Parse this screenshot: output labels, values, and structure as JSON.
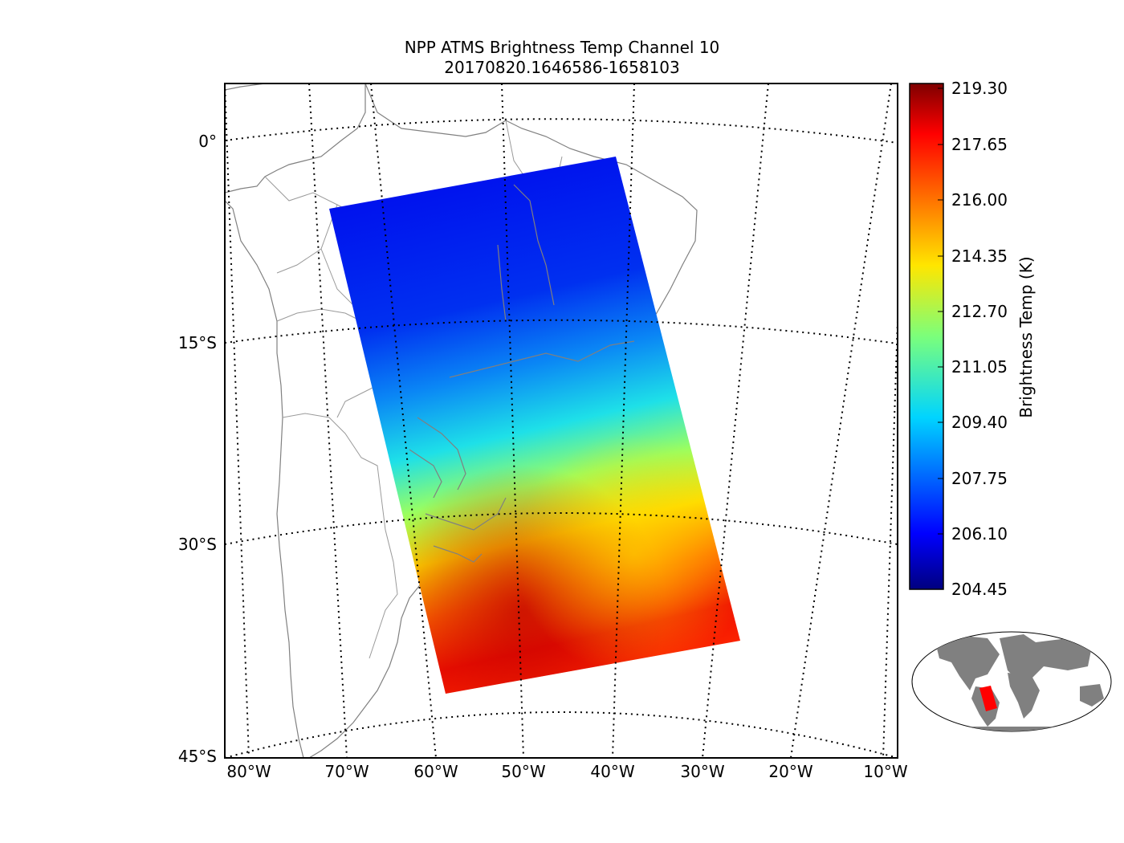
{
  "title": "NPP ATMS Brightness Temp Channel 10",
  "subtitle": "20170820.1646586-1658103",
  "lat_labels": [
    "0°",
    "15°S",
    "30°S",
    "45°S"
  ],
  "lon_labels": [
    "80°W",
    "70°W",
    "60°W",
    "50°W",
    "40°W",
    "30°W",
    "20°W",
    "10°W"
  ],
  "colorbar": {
    "title": "Brightness Temp (K)",
    "ticks": [
      "219.30",
      "217.65",
      "216.00",
      "214.35",
      "212.70",
      "211.05",
      "209.40",
      "207.75",
      "206.10",
      "204.45"
    ],
    "colormap": "jet"
  },
  "colors": {
    "coastline": "#808080",
    "borders": "#808080",
    "inset_land": "#808080",
    "inset_swath": "#ff0000"
  }
}
